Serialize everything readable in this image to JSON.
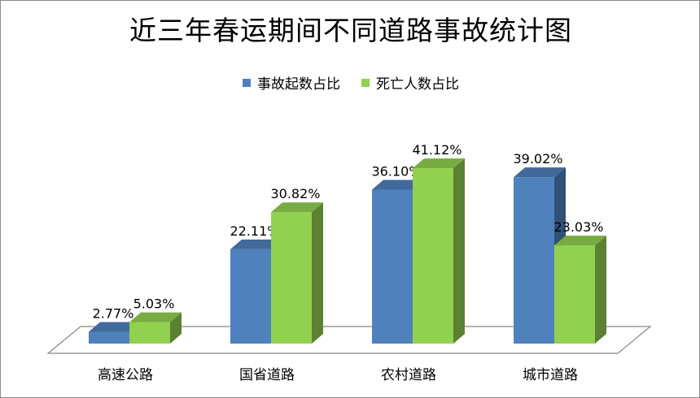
{
  "chart_data": {
    "type": "bar",
    "title": "近三年春运期间不同道路事故统计图",
    "categories": [
      "高速公路",
      "国省道路",
      "农村道路",
      "城市道路"
    ],
    "series": [
      {
        "name": "事故起数占比",
        "values": [
          2.77,
          22.11,
          36.1,
          39.02
        ],
        "labels": [
          "2.77%",
          "22.11%",
          "36.10%",
          "39.02%"
        ],
        "color": "#4F81BD"
      },
      {
        "name": "死亡人数占比",
        "values": [
          5.03,
          30.82,
          41.12,
          23.03
        ],
        "labels": [
          "5.03%",
          "30.82%",
          "41.12%",
          "23.03%"
        ],
        "color": "#92D050"
      }
    ],
    "ylim": [
      0,
      45
    ],
    "legend": "top",
    "grid": false,
    "style": "3d-clustered-column"
  }
}
